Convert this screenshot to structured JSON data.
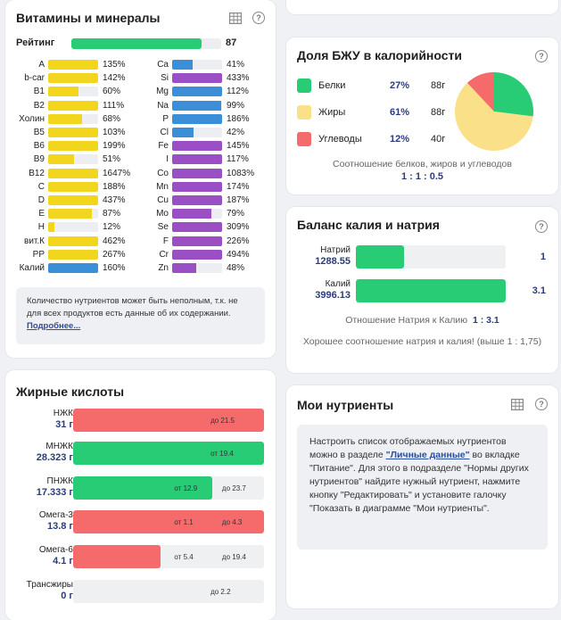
{
  "vitamins": {
    "title": "Витамины и минералы",
    "rating_label": "Рейтинг",
    "rating_value": "87",
    "rating_fraction": 0.87,
    "left_column": [
      {
        "name": "A",
        "pct": "135%",
        "fill": 1.0,
        "color": "#f2d61d"
      },
      {
        "name": "b-car",
        "pct": "142%",
        "fill": 1.0,
        "color": "#f2d61d"
      },
      {
        "name": "B1",
        "pct": "60%",
        "fill": 0.6,
        "color": "#f2d61d"
      },
      {
        "name": "B2",
        "pct": "111%",
        "fill": 1.0,
        "color": "#f2d61d"
      },
      {
        "name": "Холин",
        "pct": "68%",
        "fill": 0.68,
        "color": "#f2d61d"
      },
      {
        "name": "B5",
        "pct": "103%",
        "fill": 1.0,
        "color": "#f2d61d"
      },
      {
        "name": "B6",
        "pct": "199%",
        "fill": 1.0,
        "color": "#f2d61d"
      },
      {
        "name": "B9",
        "pct": "51%",
        "fill": 0.51,
        "color": "#f2d61d"
      },
      {
        "name": "B12",
        "pct": "1647%",
        "fill": 1.0,
        "color": "#f2d61d"
      },
      {
        "name": "C",
        "pct": "188%",
        "fill": 1.0,
        "color": "#f2d61d"
      },
      {
        "name": "D",
        "pct": "437%",
        "fill": 1.0,
        "color": "#f2d61d"
      },
      {
        "name": "E",
        "pct": "87%",
        "fill": 0.87,
        "color": "#f2d61d"
      },
      {
        "name": "H",
        "pct": "12%",
        "fill": 0.12,
        "color": "#f2d61d"
      },
      {
        "name": "вит.К",
        "pct": "462%",
        "fill": 1.0,
        "color": "#f2d61d"
      },
      {
        "name": "PP",
        "pct": "267%",
        "fill": 1.0,
        "color": "#f2d61d"
      },
      {
        "name": "Калий",
        "pct": "160%",
        "fill": 1.0,
        "color": "#3b8fd9"
      }
    ],
    "right_column": [
      {
        "name": "Ca",
        "pct": "41%",
        "fill": 0.41,
        "color": "#3b8fd9"
      },
      {
        "name": "Si",
        "pct": "433%",
        "fill": 1.0,
        "color": "#9b4fc4"
      },
      {
        "name": "Mg",
        "pct": "112%",
        "fill": 1.0,
        "color": "#3b8fd9"
      },
      {
        "name": "Na",
        "pct": "99%",
        "fill": 0.99,
        "color": "#3b8fd9"
      },
      {
        "name": "P",
        "pct": "186%",
        "fill": 1.0,
        "color": "#3b8fd9"
      },
      {
        "name": "Cl",
        "pct": "42%",
        "fill": 0.42,
        "color": "#3b8fd9"
      },
      {
        "name": "Fe",
        "pct": "145%",
        "fill": 1.0,
        "color": "#9b4fc4"
      },
      {
        "name": "I",
        "pct": "117%",
        "fill": 1.0,
        "color": "#9b4fc4"
      },
      {
        "name": "Co",
        "pct": "1083%",
        "fill": 1.0,
        "color": "#9b4fc4"
      },
      {
        "name": "Mn",
        "pct": "174%",
        "fill": 1.0,
        "color": "#9b4fc4"
      },
      {
        "name": "Cu",
        "pct": "187%",
        "fill": 1.0,
        "color": "#9b4fc4"
      },
      {
        "name": "Mo",
        "pct": "79%",
        "fill": 0.79,
        "color": "#9b4fc4"
      },
      {
        "name": "Se",
        "pct": "309%",
        "fill": 1.0,
        "color": "#9b4fc4"
      },
      {
        "name": "F",
        "pct": "226%",
        "fill": 1.0,
        "color": "#9b4fc4"
      },
      {
        "name": "Cr",
        "pct": "494%",
        "fill": 1.0,
        "color": "#9b4fc4"
      },
      {
        "name": "Zn",
        "pct": "48%",
        "fill": 0.48,
        "color": "#9b4fc4"
      }
    ],
    "note_text": "Количество нутриентов может быть неполным, т.к. не для всех продуктов есть данные об их содержании.",
    "note_link": "Подробнее..."
  },
  "fatty_acids": {
    "title": "Жирные кислоты",
    "rows": [
      {
        "name": "НЖК",
        "value": "31 г",
        "fill": 1.0,
        "fill_color": "#f56b6b",
        "marks": [
          {
            "text": "до 21.5",
            "pos": 0.72
          }
        ]
      },
      {
        "name": "МНЖК",
        "value": "28.323 г",
        "fill": 1.0,
        "fill_color": "#27cc74",
        "marks": [
          {
            "text": "от 19.4",
            "pos": 0.72
          }
        ]
      },
      {
        "name": "ПНЖК",
        "value": "17.333 г",
        "fill": 0.73,
        "fill_color": "#27cc74",
        "marks": [
          {
            "text": "от 12.9",
            "pos": 0.53
          },
          {
            "text": "до 23.7",
            "pos": 0.78
          }
        ]
      },
      {
        "name": "Омега-3",
        "value": "13.8 г",
        "fill": 1.0,
        "fill_color": "#f56b6b",
        "marks": [
          {
            "text": "от 1.1",
            "pos": 0.53
          },
          {
            "text": "до 4.3",
            "pos": 0.78
          }
        ]
      },
      {
        "name": "Омега-6",
        "value": "4.1 г",
        "fill": 0.46,
        "fill_color": "#f56b6b",
        "marks": [
          {
            "text": "от 5.4",
            "pos": 0.53
          },
          {
            "text": "до 19.4",
            "pos": 0.78
          }
        ]
      },
      {
        "name": "Трансжиры",
        "value": "0 г",
        "fill": 0.0,
        "fill_color": "#f56b6b",
        "marks": [
          {
            "text": "до 2.2",
            "pos": 0.72
          }
        ]
      }
    ]
  },
  "pfc": {
    "title": "Доля БЖУ в калорийности",
    "rows": [
      {
        "name": "Белки",
        "pct": "27%",
        "grams": "88г",
        "color": "#27cc74"
      },
      {
        "name": "Жиры",
        "pct": "61%",
        "grams": "88г",
        "color": "#fbe08a"
      },
      {
        "name": "Углеводы",
        "pct": "12%",
        "grams": "40г",
        "color": "#f56b6b"
      }
    ],
    "caption": "Соотношение белков, жиров и углеводов",
    "ratio": "1 : 1 : 0.5",
    "chart_data": {
      "type": "pie",
      "categories": [
        "Белки",
        "Жиры",
        "Углеводы"
      ],
      "values": [
        27,
        61,
        12
      ],
      "colors": [
        "#27cc74",
        "#fbe08a",
        "#f56b6b"
      ]
    }
  },
  "potassium_sodium": {
    "title": "Баланс калия и натрия",
    "rows": [
      {
        "name": "Натрий",
        "value": "1288.55",
        "fill": 0.32,
        "ratio": "1"
      },
      {
        "name": "Калий",
        "value": "3996.13",
        "fill": 1.0,
        "ratio": "3.1"
      }
    ],
    "ratio_label": "Отношение Натрия к Калию",
    "ratio_value": "1 : 3.1",
    "comment": "Хорошее соотношение натрия и калия! (выше 1 : 1,75)"
  },
  "my_nutrients": {
    "title": "Мои нутриенты",
    "text_before": "Настроить список отображаемых нутриентов можно в разделе ",
    "link": "\"Личные данные\"",
    "text_after": " во вкладке \"Питание\". Для этого в подразделе \"Нормы других нутриентов\" найдите нужный нутриент, нажмите кнопку \"Редактировать\" и установите галочку \"Показать в диаграмме \"Мои нутриенты\"."
  },
  "icons": {
    "help": "?",
    "table": "table-icon"
  }
}
